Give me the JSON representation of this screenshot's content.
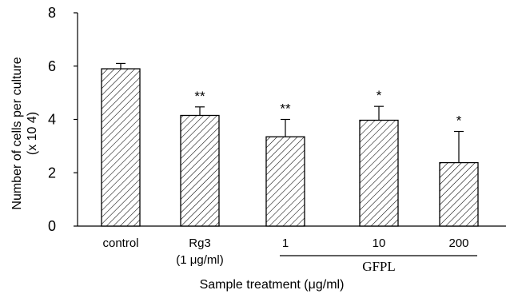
{
  "chart_data": {
    "type": "bar",
    "categories": [
      "control",
      "Rg3",
      "1",
      "10",
      "200"
    ],
    "category_sublabels": [
      "",
      "(1 μg/ml)",
      "",
      "",
      ""
    ],
    "values": [
      5.9,
      4.15,
      3.35,
      3.97,
      2.38
    ],
    "error_bars": [
      0.2,
      0.32,
      0.65,
      0.52,
      1.17
    ],
    "significance": [
      "",
      "**",
      "**",
      "*",
      "*"
    ],
    "ylim": [
      0,
      8
    ],
    "yticks": [
      0,
      2,
      4,
      6,
      8
    ],
    "ylabel_line1": "Number of cells per culture",
    "ylabel_line2": "(x 10 4)",
    "xlabel": "Sample treatment (μg/ml)",
    "group_label": "GFPL",
    "grid": false,
    "bar_pattern": "diagonal-hatch",
    "bar_color": "#000000"
  }
}
